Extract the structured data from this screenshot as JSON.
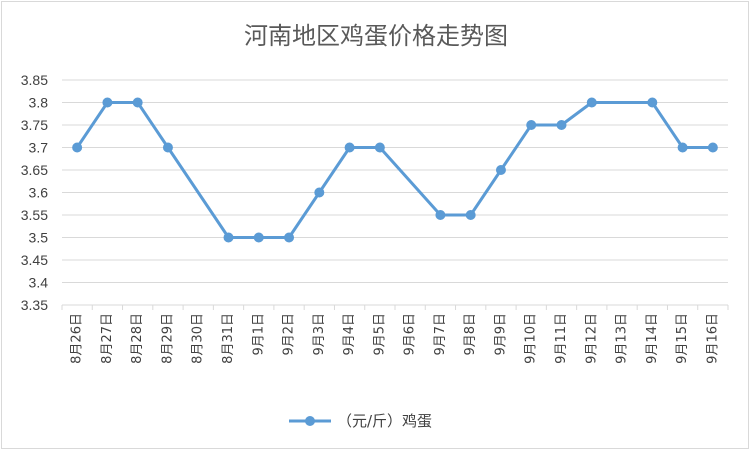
{
  "chart_data": {
    "type": "line",
    "title": "河南地区鸡蛋价格走势图",
    "xlabel": "",
    "ylabel": "",
    "ylim": [
      3.35,
      3.85
    ],
    "yticks": [
      "3.35",
      "3.4",
      "3.45",
      "3.5",
      "3.55",
      "3.6",
      "3.65",
      "3.7",
      "3.75",
      "3.8",
      "3.85"
    ],
    "grid": true,
    "legend_position": "bottom",
    "categories": [
      "8月26日",
      "8月27日",
      "8月28日",
      "8月29日",
      "8月30日",
      "8月31日",
      "9月1日",
      "9月2日",
      "9月3日",
      "9月4日",
      "9月5日",
      "9月6日",
      "9月7日",
      "9月8日",
      "9月9日",
      "9月10日",
      "9月11日",
      "9月12日",
      "9月13日",
      "9月14日",
      "9月15日",
      "9月16日"
    ],
    "series": [
      {
        "name": "（元/斤）鸡蛋",
        "color": "#5b9bd5",
        "values": [
          3.7,
          3.8,
          3.8,
          3.7,
          null,
          3.5,
          3.5,
          3.5,
          3.6,
          3.7,
          3.7,
          null,
          3.55,
          3.55,
          3.65,
          3.75,
          3.75,
          3.8,
          null,
          3.8,
          3.7,
          3.7
        ]
      }
    ]
  }
}
